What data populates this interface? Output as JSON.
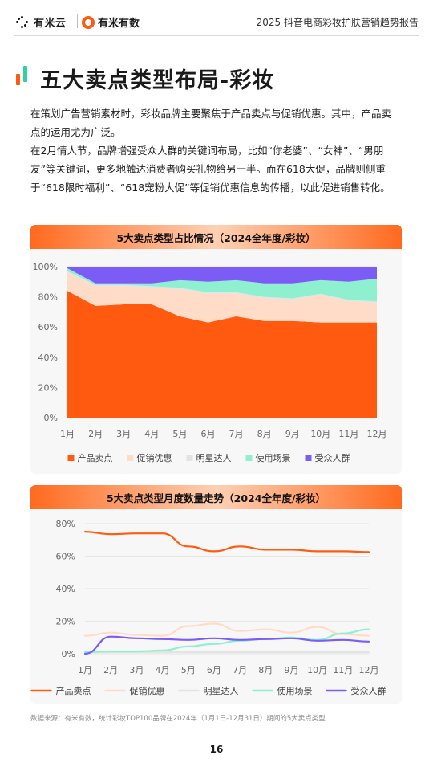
{
  "header": {
    "logo1_text": "有米云",
    "logo2_text": "有米有数",
    "report_title": "2025 抖音电商彩妆护肤营销趋势报告"
  },
  "page": {
    "title": "五大卖点类型布局-彩妆",
    "intro_p1": "在策划广告营销素材时，彩妆品牌主要聚焦于产品卖点与促销优惠。其中，产品卖点的运用尤为广泛。",
    "intro_p2": "在2月情人节，品牌增强受众人群的关键词布局，比如“你老婆”、“女神”、“男朋友”等关键词，更多地触达消费者购买礼物给另一半。而在618大促，品牌则侧重于“618限时福利”、“618宠粉大促”等促销优惠信息的传播，以此促进销售转化。",
    "source": "数据来源：有米有数，统计彩妆TOP100品牌在2024年（1月1日-12月31日）期间的5大卖点类型",
    "page_number": "16"
  },
  "colors": {
    "accent_orange": "#ff5a0f",
    "accent_green": "#2ed3a5",
    "series": [
      "#ff5a0f",
      "#ffdcc8",
      "#e3e3e3",
      "#8ef0cf",
      "#7b5cf5"
    ]
  },
  "chart_data": [
    {
      "type": "area",
      "stacked": true,
      "title": "5大卖点类型占比情况（2024全年度/彩妆）",
      "categories": [
        "1月",
        "2月",
        "3月",
        "4月",
        "5月",
        "6月",
        "7月",
        "8月",
        "9月",
        "10月",
        "11月",
        "12月"
      ],
      "ylim": [
        0,
        100
      ],
      "yticks": [
        "0%",
        "20%",
        "40%",
        "60%",
        "80%",
        "100%"
      ],
      "legend_position": "bottom",
      "grid": true,
      "series": [
        {
          "name": "产品卖点",
          "values": [
            84,
            74,
            75,
            75,
            67,
            63,
            67,
            64,
            64,
            63,
            63,
            63
          ]
        },
        {
          "name": "促销优惠",
          "values": [
            12,
            13,
            12,
            11,
            18,
            19,
            15,
            15,
            14,
            18,
            14,
            13
          ]
        },
        {
          "name": "明星达人",
          "values": [
            1,
            1,
            1,
            1,
            1,
            1,
            1,
            1,
            1,
            1,
            1,
            1
          ]
        },
        {
          "name": "使用场景",
          "values": [
            2,
            1,
            1,
            2,
            5,
            7,
            8,
            9,
            10,
            9,
            12,
            15
          ]
        },
        {
          "name": "受众人群",
          "values": [
            1,
            11,
            11,
            11,
            9,
            10,
            9,
            11,
            11,
            9,
            10,
            8
          ]
        }
      ]
    },
    {
      "type": "line",
      "title": "5大卖点类型月度数量走势（2024全年度/彩妆）",
      "categories": [
        "1月",
        "2月",
        "3月",
        "4月",
        "5月",
        "6月",
        "7月",
        "8月",
        "9月",
        "10月",
        "11月",
        "12月"
      ],
      "ylim": [
        0,
        80
      ],
      "yticks": [
        "0%",
        "20%",
        "40%",
        "60%",
        "80%"
      ],
      "legend_position": "bottom",
      "grid": true,
      "series": [
        {
          "name": "产品卖点",
          "values": [
            75,
            73.5,
            74,
            74,
            66,
            63,
            66,
            64,
            64,
            63,
            63,
            62.5
          ]
        },
        {
          "name": "促销优惠",
          "values": [
            11,
            13,
            11.5,
            11,
            17,
            18.5,
            14,
            15,
            13,
            16.5,
            12,
            11
          ]
        },
        {
          "name": "明星达人",
          "values": [
            1,
            1,
            1,
            1,
            1,
            1,
            1,
            1,
            1,
            1,
            1,
            1
          ]
        },
        {
          "name": "使用场景",
          "values": [
            1,
            1.5,
            1.5,
            2,
            4.5,
            6,
            8,
            9,
            10,
            8.5,
            12.5,
            15
          ]
        },
        {
          "name": "受众人群",
          "values": [
            0,
            10.5,
            9.5,
            9,
            8.5,
            9.5,
            8.5,
            9,
            9.5,
            8,
            8.5,
            7.5
          ]
        }
      ]
    }
  ]
}
